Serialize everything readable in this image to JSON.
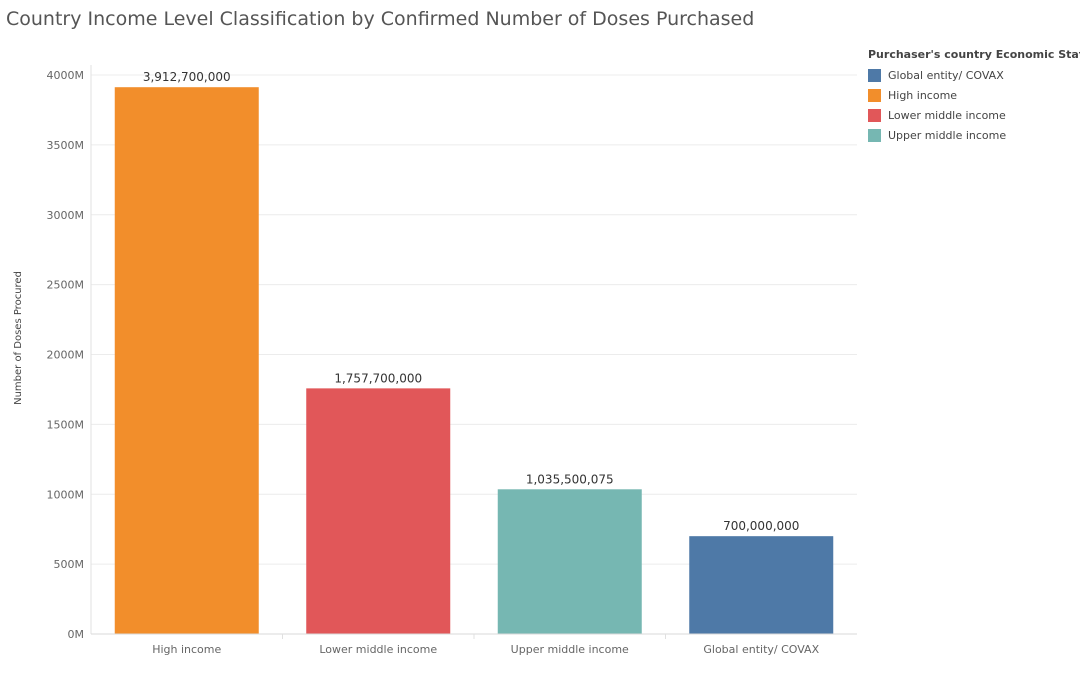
{
  "title": "Country Income Level Classification by Confirmed Number of Doses Purchased",
  "legend": {
    "title": "Purchaser's country Economic  Status",
    "items": [
      {
        "label": "Global entity/ COVAX",
        "color": "#4e79a7"
      },
      {
        "label": "High income",
        "color": "#f28e2b"
      },
      {
        "label": "Lower middle income",
        "color": "#e15759"
      },
      {
        "label": "Upper middle income",
        "color": "#76b7b2"
      }
    ]
  },
  "chart_data": {
    "type": "bar",
    "title": "Country Income Level Classification by Confirmed Number of Doses Purchased",
    "xlabel": "",
    "ylabel": "Number of Doses Procured",
    "categories": [
      "High income",
      "Lower middle income",
      "Upper middle income",
      "Global entity/ COVAX"
    ],
    "values": [
      3912700000,
      1757700000,
      1035500075,
      700000000
    ],
    "value_labels": [
      "3,912,700,000",
      "1,757,700,000",
      "1,035,500,075",
      "700,000,000"
    ],
    "colors": [
      "#f28e2b",
      "#e15759",
      "#76b7b2",
      "#4e79a7"
    ],
    "ylim": [
      0,
      4000000000
    ],
    "yticks": [
      0,
      500000000,
      1000000000,
      1500000000,
      2000000000,
      2500000000,
      3000000000,
      3500000000,
      4000000000
    ],
    "ytick_labels": [
      "0M",
      "500M",
      "1000M",
      "1500M",
      "2000M",
      "2500M",
      "3000M",
      "3500M",
      "4000M"
    ],
    "grid": true,
    "legend_position": "right"
  }
}
